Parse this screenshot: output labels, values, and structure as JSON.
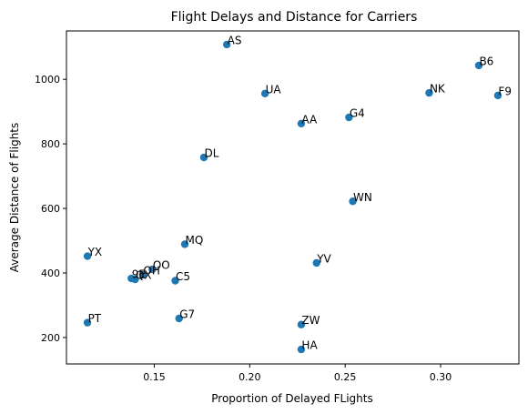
{
  "chart_data": {
    "type": "scatter",
    "title": "Flight Delays and Distance for Carriers",
    "xlabel": "Proportion of Delayed FLights",
    "ylabel": "Average Distance of Flights",
    "xlim": [
      0.104,
      0.341
    ],
    "ylim": [
      118,
      1150
    ],
    "xticks": [
      0.15,
      0.2,
      0.25,
      0.3
    ],
    "xtick_labels": [
      "0.15",
      "0.20",
      "0.25",
      "0.30"
    ],
    "yticks": [
      200,
      400,
      600,
      800,
      1000
    ],
    "ytick_labels": [
      "200",
      "400",
      "600",
      "800",
      "1000"
    ],
    "grid": false,
    "marker_color": "#1f77b4",
    "points": [
      {
        "label": "AS",
        "x": 0.188,
        "y": 1108
      },
      {
        "label": "B6",
        "x": 0.32,
        "y": 1043
      },
      {
        "label": "NK",
        "x": 0.294,
        "y": 958
      },
      {
        "label": "F9",
        "x": 0.33,
        "y": 950
      },
      {
        "label": "UA",
        "x": 0.208,
        "y": 956
      },
      {
        "label": "G4",
        "x": 0.252,
        "y": 882
      },
      {
        "label": "AA",
        "x": 0.227,
        "y": 863
      },
      {
        "label": "DL",
        "x": 0.176,
        "y": 758
      },
      {
        "label": "WN",
        "x": 0.254,
        "y": 622
      },
      {
        "label": "YX",
        "x": 0.115,
        "y": 452
      },
      {
        "label": "MQ",
        "x": 0.166,
        "y": 489
      },
      {
        "label": "YV",
        "x": 0.235,
        "y": 431
      },
      {
        "label": "OO",
        "x": 0.149,
        "y": 411
      },
      {
        "label": "OH",
        "x": 0.144,
        "y": 394
      },
      {
        "label": "9E",
        "x": 0.138,
        "y": 383
      },
      {
        "label": "QX",
        "x": 0.14,
        "y": 380
      },
      {
        "label": "C5",
        "x": 0.161,
        "y": 376
      },
      {
        "label": "G7",
        "x": 0.163,
        "y": 259
      },
      {
        "label": "PT",
        "x": 0.115,
        "y": 246
      },
      {
        "label": "ZW",
        "x": 0.227,
        "y": 240
      },
      {
        "label": "HA",
        "x": 0.227,
        "y": 163
      }
    ]
  }
}
